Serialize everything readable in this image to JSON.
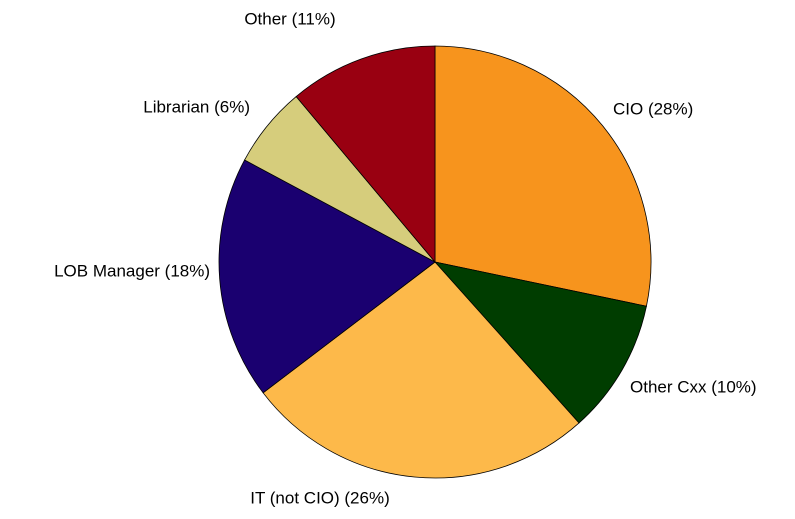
{
  "chart_data": {
    "type": "pie",
    "categories": [
      "CIO (28%)",
      "Other Cxx (10%)",
      "IT (not CIO) (26%)",
      "LOB Manager (18%)",
      "Librarian (6%)",
      "Other (11%)"
    ],
    "values": [
      28,
      10,
      26,
      18,
      6,
      11
    ],
    "colors": [
      "#f7941d",
      "#003d00",
      "#fdb94a",
      "#1a0070",
      "#d6cd7c",
      "#990011"
    ]
  }
}
